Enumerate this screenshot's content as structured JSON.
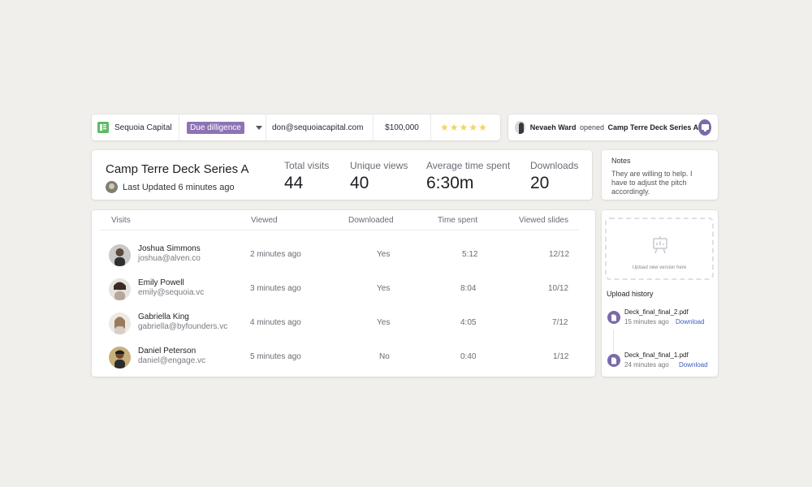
{
  "topbar": {
    "company": "Sequoia Capital",
    "stage": "Due dilligence",
    "email": "don@sequoiacapital.com",
    "amount": "$100,000",
    "rating": 5
  },
  "activity": {
    "user": "Nevaeh Ward",
    "action": "opened",
    "target": "Camp Terre Deck Series A"
  },
  "deck": {
    "title": "Camp Terre Deck Series A",
    "updated": "Last Updated 6 minutes ago"
  },
  "stats": [
    {
      "label": "Total visits",
      "value": "44"
    },
    {
      "label": "Unique views",
      "value": "40"
    },
    {
      "label": "Average time spent",
      "value": "6:30m"
    },
    {
      "label": "Downloads",
      "value": "20"
    }
  ],
  "notes": {
    "title": "Notes",
    "body": "They are willing to help. I have to adjust the pitch accordingly."
  },
  "table": {
    "headers": [
      "Visits",
      "Viewed",
      "Downloaded",
      "Time spent",
      "Viewed slides"
    ],
    "rows": [
      {
        "name": "Joshua Simmons",
        "email": "joshua@alven.co",
        "viewed": "2 minutes ago",
        "downloaded": "Yes",
        "time": "5:12",
        "slides": "12/12"
      },
      {
        "name": "Emily Powell",
        "email": "emily@sequoia.vc",
        "viewed": "3 minutes ago",
        "downloaded": "Yes",
        "time": "8:04",
        "slides": "10/12"
      },
      {
        "name": "Gabriella King",
        "email": "gabriella@byfounders.vc",
        "viewed": "4 minutes ago",
        "downloaded": "Yes",
        "time": "4:05",
        "slides": "7/12"
      },
      {
        "name": "Daniel Peterson",
        "email": "daniel@engage.vc",
        "viewed": "5 minutes ago",
        "downloaded": "No",
        "time": "0:40",
        "slides": "1/12"
      }
    ]
  },
  "upload": {
    "dropzone_text": "Upload new version here",
    "history_title": "Upload history",
    "files": [
      {
        "name": "Deck_final_final_2.pdf",
        "time": "15 minutes ago",
        "action": "Download"
      },
      {
        "name": "Deck_final_final_1.pdf",
        "time": "24 minutes ago",
        "action": "Download"
      }
    ]
  },
  "colors": {
    "background": "#f0efeb",
    "accent": "#7b6aa9",
    "stage_badge": "#8d73b5",
    "star": "#f4d35e",
    "link": "#3b5bbf",
    "company_logo": "#5dbb63"
  },
  "icons": {
    "company": "building-logo-icon",
    "dropdown": "chevron-down-icon",
    "star": "star-icon",
    "present": "presentation-icon",
    "upload": "presentation-board-icon",
    "file": "document-icon"
  }
}
